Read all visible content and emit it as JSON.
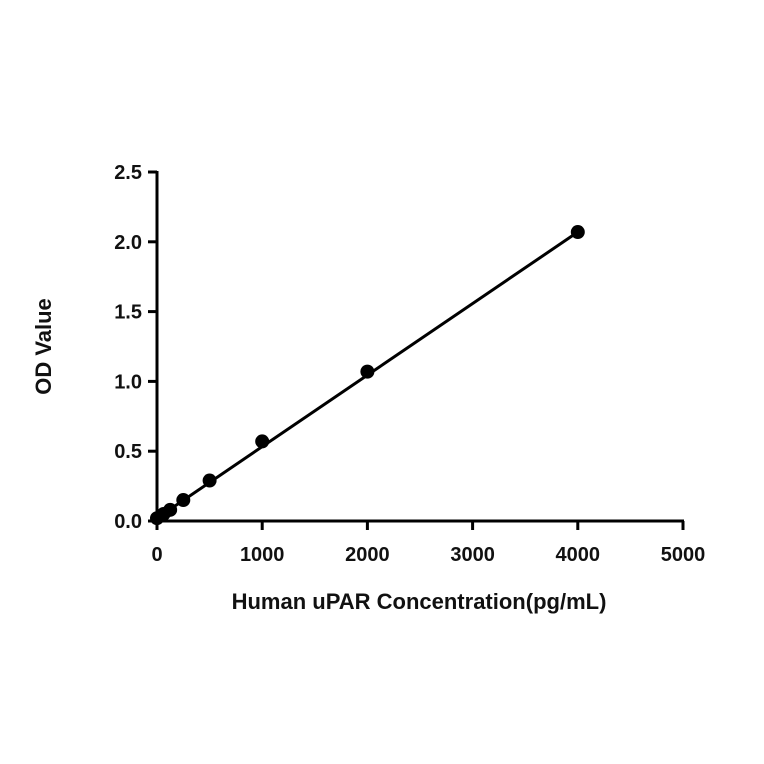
{
  "chart_data": {
    "type": "scatter",
    "title": "",
    "xlabel": "Human uPAR Concentration(pg/mL)",
    "ylabel": "OD Value",
    "xlim": [
      0,
      5000
    ],
    "ylim": [
      0,
      2.5
    ],
    "xticks": [
      0,
      1000,
      2000,
      3000,
      4000,
      5000
    ],
    "yticks": [
      0.0,
      0.5,
      1.0,
      1.5,
      2.0,
      2.5
    ],
    "xtick_labels": [
      "0",
      "1000",
      "2000",
      "3000",
      "4000",
      "5000"
    ],
    "ytick_labels": [
      "0.0",
      "0.5",
      "1.0",
      "1.5",
      "2.0",
      "2.5"
    ],
    "grid": false,
    "series": [
      {
        "points": [
          {
            "x": 0,
            "y": 0.02
          },
          {
            "x": 62.5,
            "y": 0.05
          },
          {
            "x": 125,
            "y": 0.08
          },
          {
            "x": 250,
            "y": 0.15
          },
          {
            "x": 500,
            "y": 0.29
          },
          {
            "x": 1000,
            "y": 0.57
          },
          {
            "x": 2000,
            "y": 1.07
          },
          {
            "x": 4000,
            "y": 2.07
          }
        ],
        "fit_line": {
          "x_start": 0,
          "y_start": 0.02,
          "x_end": 4000,
          "y_end": 2.07
        },
        "color": "#000000"
      }
    ]
  }
}
